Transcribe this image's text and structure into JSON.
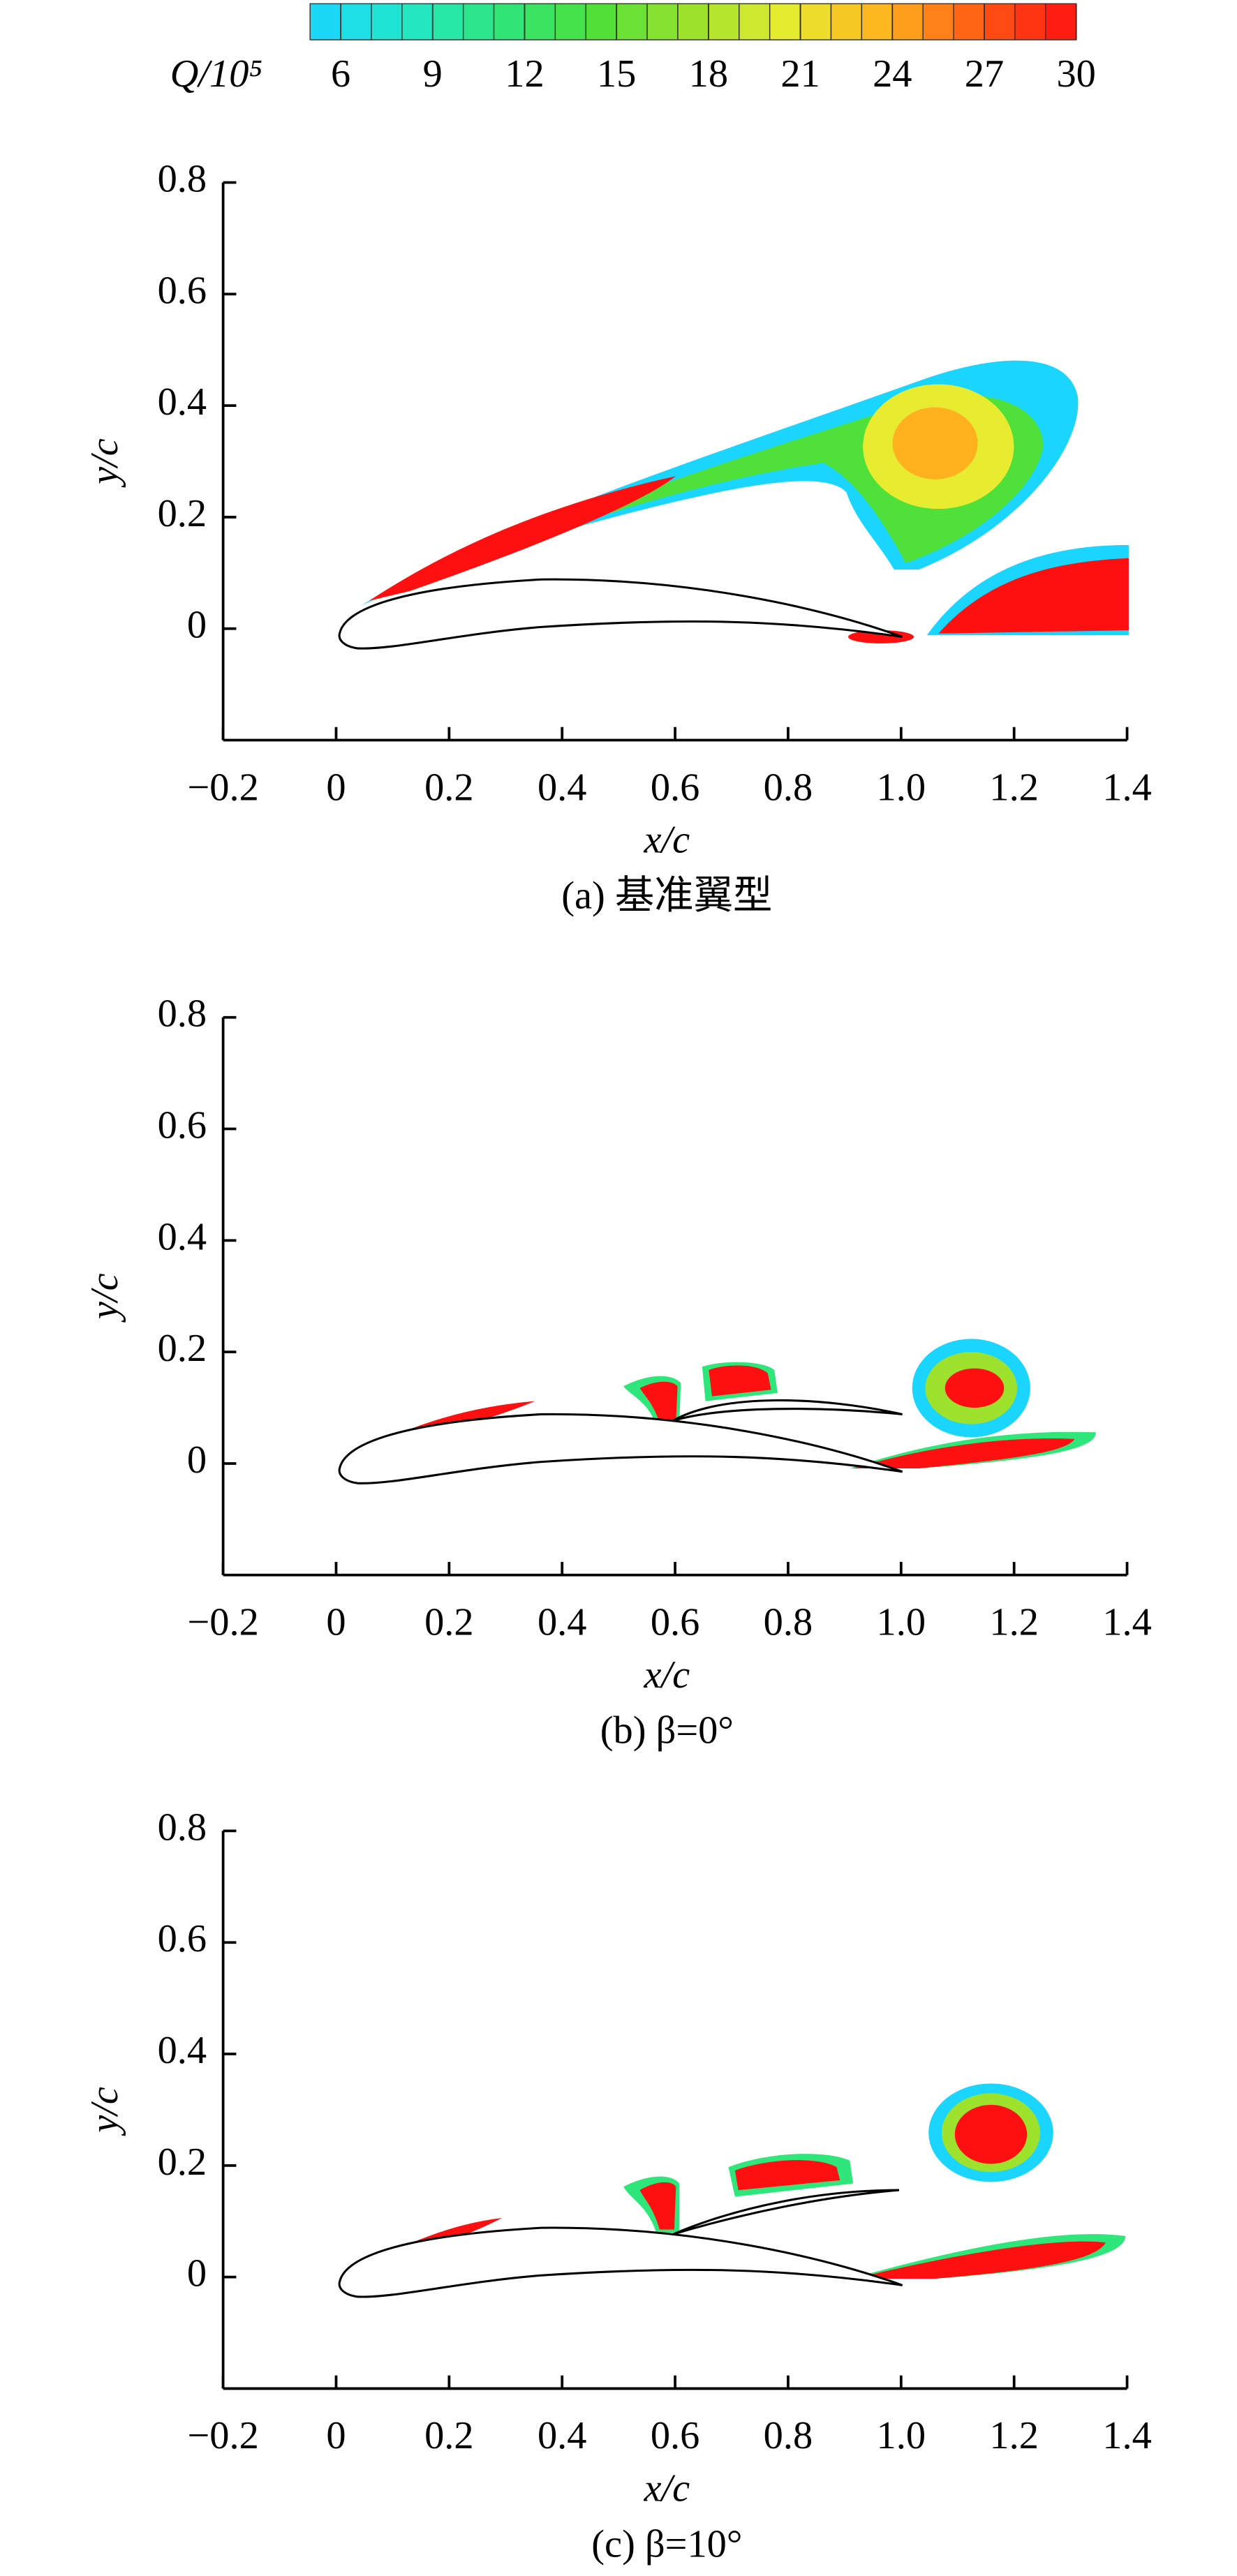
{
  "colorbar": {
    "label": "Q/10⁵",
    "lim": [
      5,
      30
    ],
    "ticks": [
      6,
      9,
      12,
      15,
      18,
      21,
      24,
      27,
      30
    ],
    "colors": [
      "#1ad6ff",
      "#22e8c8",
      "#2ee67a",
      "#4fe03a",
      "#9de22c",
      "#e8ec30",
      "#ffb21e",
      "#ff5a14",
      "#ff1010"
    ]
  },
  "chart_data": [
    {
      "type": "contour",
      "caption": "(a) 基准翼型",
      "xlabel": "x/c",
      "ylabel": "y/c",
      "xlim": [
        -0.2,
        1.4
      ],
      "ylim": [
        -0.2,
        0.8
      ],
      "xticks": [
        {
          "value": -0.2,
          "label": "−0.2"
        },
        0,
        0.2,
        0.4,
        0.6,
        0.8,
        {
          "value": 1,
          "label": "1.0"
        },
        1.2,
        1.4
      ],
      "yticks": [
        0,
        0.2,
        0.4,
        0.6,
        0.8
      ]
    },
    {
      "type": "contour",
      "caption": "(b) β=0°",
      "xlabel": "x/c",
      "ylabel": "y/c",
      "xlim": [
        -0.2,
        1.4
      ],
      "ylim": [
        -0.2,
        0.8
      ],
      "xticks": [
        {
          "value": -0.2,
          "label": "−0.2"
        },
        0,
        0.2,
        0.4,
        0.6,
        0.8,
        {
          "value": 1,
          "label": "1.0"
        },
        1.2,
        1.4
      ],
      "yticks": [
        0,
        0.2,
        0.4,
        0.6,
        0.8
      ]
    },
    {
      "type": "contour",
      "caption": "(c) β=10°",
      "xlabel": "x/c",
      "ylabel": "y/c",
      "xlim": [
        -0.2,
        1.4
      ],
      "ylim": [
        -0.2,
        0.8
      ],
      "xticks": [
        {
          "value": -0.2,
          "label": "−0.2"
        },
        0,
        0.2,
        0.4,
        0.6,
        0.8,
        {
          "value": 1,
          "label": "1.0"
        },
        1.2,
        1.4
      ],
      "yticks": [
        0,
        0.2,
        0.4,
        0.6,
        0.8
      ]
    }
  ]
}
